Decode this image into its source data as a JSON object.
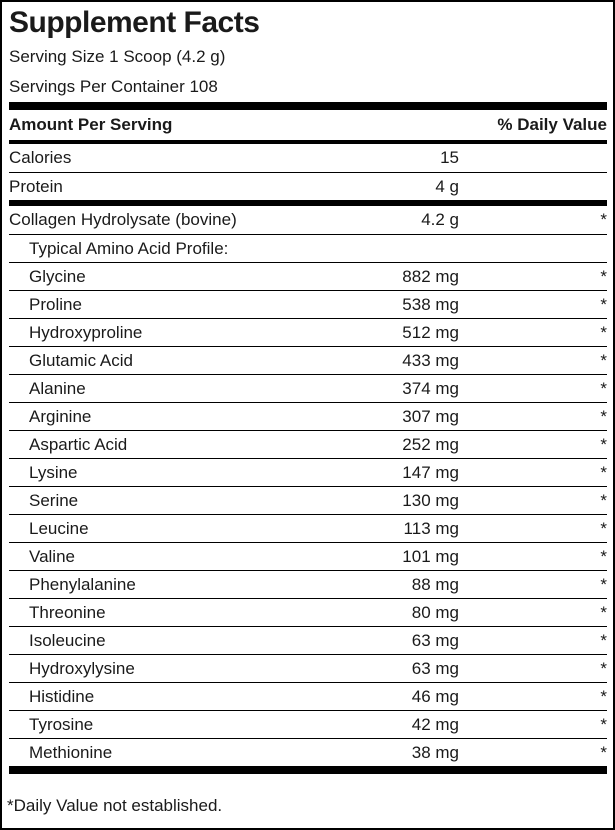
{
  "label": {
    "title": "Supplement Facts",
    "serving_size": "Serving Size 1 Scoop (4.2 g)",
    "servings_per_container": "Servings Per Container 108",
    "column_headers": {
      "amount": "Amount Per Serving",
      "daily_value": "% Daily Value"
    },
    "sections": [
      {
        "name": "macronutrients",
        "rows": [
          {
            "name": "Calories",
            "amount": "15",
            "dv": "",
            "indent": false
          },
          {
            "name": "Protein",
            "amount": "4 g",
            "dv": "",
            "indent": false
          }
        ]
      },
      {
        "name": "ingredients",
        "rows": [
          {
            "name": "Collagen Hydrolysate (bovine)",
            "amount": "4.2 g",
            "dv": "*",
            "indent": false
          },
          {
            "name": "Typical Amino Acid Profile:",
            "amount": "",
            "dv": "",
            "indent": true
          },
          {
            "name": "Glycine",
            "amount": "882 mg",
            "dv": "*",
            "indent": true
          },
          {
            "name": "Proline",
            "amount": "538 mg",
            "dv": "*",
            "indent": true
          },
          {
            "name": "Hydroxyproline",
            "amount": "512 mg",
            "dv": "*",
            "indent": true
          },
          {
            "name": "Glutamic Acid",
            "amount": "433 mg",
            "dv": "*",
            "indent": true
          },
          {
            "name": "Alanine",
            "amount": "374 mg",
            "dv": "*",
            "indent": true
          },
          {
            "name": "Arginine",
            "amount": "307 mg",
            "dv": "*",
            "indent": true
          },
          {
            "name": "Aspartic Acid",
            "amount": "252 mg",
            "dv": "*",
            "indent": true
          },
          {
            "name": "Lysine",
            "amount": "147 mg",
            "dv": "*",
            "indent": true
          },
          {
            "name": "Serine",
            "amount": "130 mg",
            "dv": "*",
            "indent": true
          },
          {
            "name": "Leucine",
            "amount": "113 mg",
            "dv": "*",
            "indent": true
          },
          {
            "name": "Valine",
            "amount": "101 mg",
            "dv": "*",
            "indent": true
          },
          {
            "name": "Phenylalanine",
            "amount": "88 mg",
            "dv": "*",
            "indent": true
          },
          {
            "name": "Threonine",
            "amount": "80 mg",
            "dv": "*",
            "indent": true
          },
          {
            "name": "Isoleucine",
            "amount": "63 mg",
            "dv": "*",
            "indent": true
          },
          {
            "name": "Hydroxylysine",
            "amount": "63 mg",
            "dv": "*",
            "indent": true
          },
          {
            "name": "Histidine",
            "amount": "46 mg",
            "dv": "*",
            "indent": true
          },
          {
            "name": "Tyrosine",
            "amount": "42 mg",
            "dv": "*",
            "indent": true
          },
          {
            "name": "Methionine",
            "amount": "38 mg",
            "dv": "*",
            "indent": true
          }
        ]
      }
    ],
    "footnote": "*Daily Value not established.",
    "colors": {
      "text": "#1a1a1a",
      "rule": "#000000",
      "background": "#ffffff"
    }
  }
}
